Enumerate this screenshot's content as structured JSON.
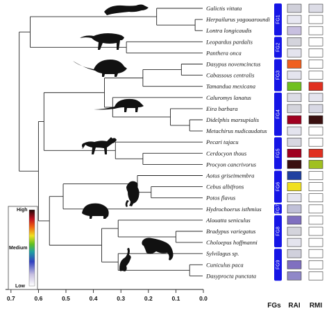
{
  "species": [
    "Galictis vittata",
    "Herpailurus yagouaroundi",
    "Lontra longicaudis",
    "Leopardus pardalis",
    "Panthera onca",
    "Dasypus novemcinctus",
    "Cabassous centralis",
    "Tamandua mexicana",
    "Caluromys lanatus",
    "Eira barbara",
    "Didelphis marsupialis",
    "Metachirus nudicaudatus",
    "Pecari tajacu",
    "Cerdocyon thous",
    "Procyon cancrivorus",
    "Aotus griseimembra",
    "Cebus albifrons",
    "Potos flavus",
    "Hydrochoerus isthmius",
    "Alouatta seniculus",
    "Bradypus variegatus",
    "Choloepus hoffmanni",
    "Sylvilagus sp.",
    "Cuniculus paca",
    "Dasyprocta punctata"
  ],
  "axis": {
    "ticks": [
      "0.7",
      "0.6",
      "0.5",
      "0.4",
      "0.3",
      "0.2",
      "0.1",
      "0.0"
    ]
  },
  "columns": {
    "fgs": "FGs",
    "rai": "RAI",
    "rmi": "RMI"
  },
  "groups": [
    {
      "label": "FG1",
      "rows": [
        0,
        2
      ]
    },
    {
      "label": "FG2",
      "rows": [
        3,
        4
      ]
    },
    {
      "label": "FG3",
      "rows": [
        5,
        7
      ]
    },
    {
      "label": "FG4",
      "rows": [
        8,
        11
      ]
    },
    {
      "label": "FG5",
      "rows": [
        12,
        14
      ]
    },
    {
      "label": "FG6",
      "rows": [
        15,
        17
      ]
    },
    {
      "label": "FG7",
      "rows": [
        18,
        18
      ]
    },
    {
      "label": "FG8",
      "rows": [
        19,
        21
      ]
    },
    {
      "label": "FG9",
      "rows": [
        22,
        24
      ]
    }
  ],
  "legend": {
    "high": "High",
    "medium": "Medium",
    "low": "Low"
  },
  "colors": {
    "fg_bar": "#1515e6",
    "rai": [
      "#d0d0da",
      "#e8e8f2",
      "#c8c0e0",
      "#d4d4dc",
      "#e4e4ee",
      "#f06020",
      "#e4e4ee",
      "#70c020",
      "#dcdce6",
      "#d4d4dc",
      "#a00020",
      "#e4e4ee",
      "#d8d8e2",
      "#a00020",
      "#3a1010",
      "#2040a0",
      "#f0e020",
      "#e4e4ee",
      "#c0c0d8",
      "#8070c0",
      "#d4d4dc",
      "#e4e4ee",
      "#d0d0dc",
      "#8070c0",
      "#9088c8"
    ],
    "rmi": [
      "#dcdce6",
      "#ffffff",
      "#ffffff",
      "#ffffff",
      "#ffffff",
      "#ffffff",
      "#ffffff",
      "#e03020",
      "#e4e4ee",
      "#d8d8e4",
      "#3a1010",
      "#ffffff",
      "#ffffff",
      "#e03020",
      "#a0c020",
      "#ffffff",
      "#ffffff",
      "#ffffff",
      "#ffffff",
      "#ffffff",
      "#ffffff",
      "#ffffff",
      "#ffffff",
      "#ffffff",
      "#ffffff"
    ]
  }
}
